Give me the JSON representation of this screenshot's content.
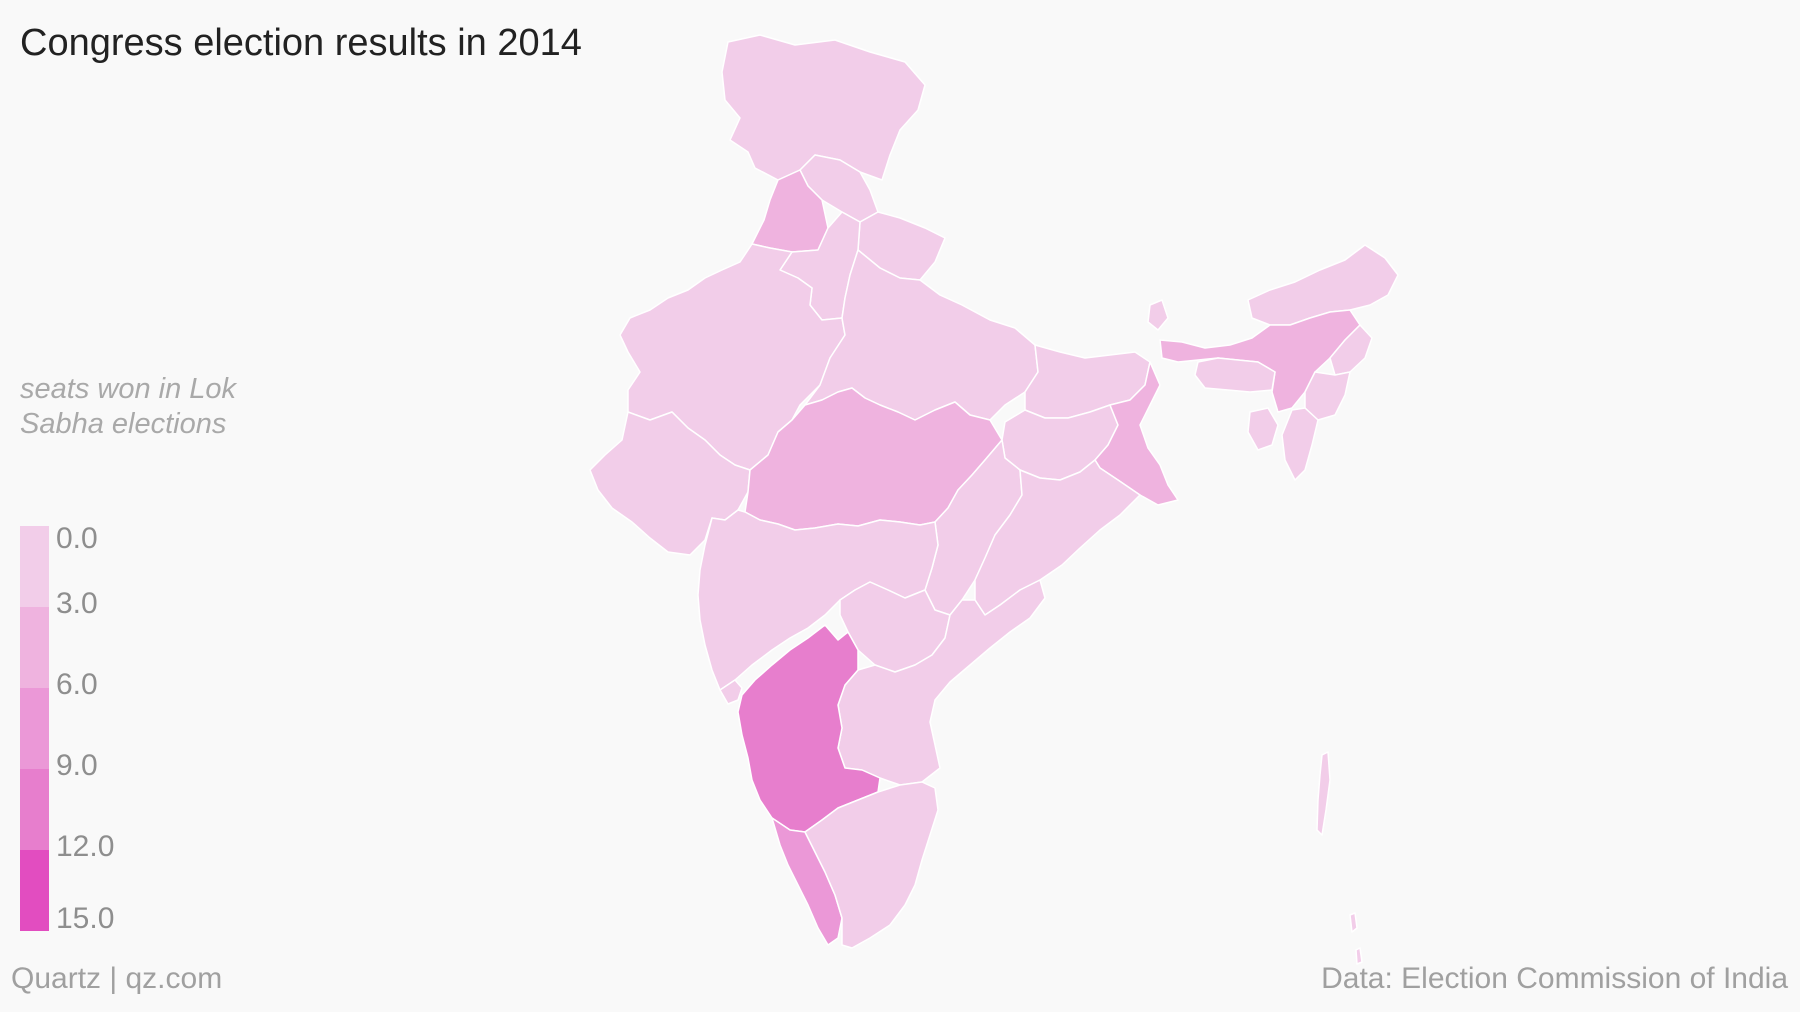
{
  "title": "Congress election results in 2014",
  "legend": {
    "title": "seats won in Lok Sabha elections",
    "ticks": [
      "0.0",
      "3.0",
      "6.0",
      "9.0",
      "12.0",
      "15.0"
    ],
    "colors": [
      "#f2cde9",
      "#efb3df",
      "#eb98d7",
      "#e77ecd",
      "#e24dc0"
    ]
  },
  "footer": {
    "source_left": "Quartz | qz.com",
    "source_right": "Data: Election Commission of India"
  },
  "map_data": {
    "regions": [
      {
        "name": "Jammu and Kashmir",
        "bin": 0
      },
      {
        "name": "Himachal Pradesh",
        "bin": 0
      },
      {
        "name": "Punjab",
        "bin": 1
      },
      {
        "name": "Uttarakhand",
        "bin": 0
      },
      {
        "name": "Haryana",
        "bin": 0
      },
      {
        "name": "Rajasthan",
        "bin": 0
      },
      {
        "name": "Uttar Pradesh",
        "bin": 0
      },
      {
        "name": "Gujarat",
        "bin": 0
      },
      {
        "name": "Madhya Pradesh",
        "bin": 1
      },
      {
        "name": "Bihar",
        "bin": 0
      },
      {
        "name": "Jharkhand",
        "bin": 0
      },
      {
        "name": "West Bengal",
        "bin": 1
      },
      {
        "name": "Chhattisgarh",
        "bin": 0
      },
      {
        "name": "Odisha",
        "bin": 0
      },
      {
        "name": "Maharashtra",
        "bin": 0
      },
      {
        "name": "Telangana",
        "bin": 0
      },
      {
        "name": "Andhra Pradesh",
        "bin": 0
      },
      {
        "name": "Goa",
        "bin": 0
      },
      {
        "name": "Karnataka",
        "bin": 3
      },
      {
        "name": "Kerala",
        "bin": 2
      },
      {
        "name": "Tamil Nadu",
        "bin": 0
      },
      {
        "name": "Sikkim",
        "bin": 0
      },
      {
        "name": "Arunachal Pradesh",
        "bin": 0
      },
      {
        "name": "Assam",
        "bin": 1
      },
      {
        "name": "Meghalaya",
        "bin": 0
      },
      {
        "name": "Nagaland",
        "bin": 0
      },
      {
        "name": "Manipur",
        "bin": 0
      },
      {
        "name": "Mizoram",
        "bin": 0
      },
      {
        "name": "Tripura",
        "bin": 0
      },
      {
        "name": "Andaman and Nicobar Islands",
        "bin": 0
      }
    ]
  }
}
